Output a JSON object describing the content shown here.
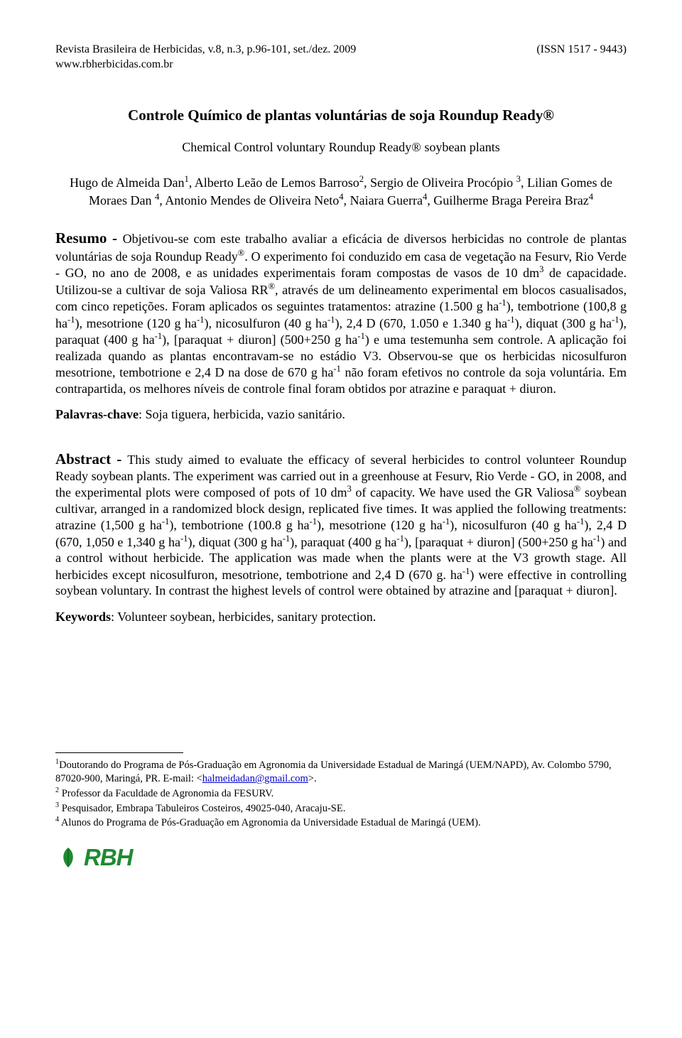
{
  "header": {
    "journal_line": "Revista Brasileira de Herbicidas, v.8, n.3, p.96-101, set./dez. 2009",
    "site_line": "www.rbherbicidas.com.br",
    "issn": "(ISSN 1517 - 9443)"
  },
  "titles": {
    "main": "Controle Químico de plantas voluntárias de soja Roundup Ready®",
    "sub": "Chemical Control voluntary Roundup Ready® soybean plants"
  },
  "authors_html": "Hugo de Almeida Dan<sup>1</sup>, Alberto Leão de Lemos Barroso<sup>2</sup>, Sergio de Oliveira Procópio <sup>3</sup>, Lilian Gomes de Moraes Dan <sup>4</sup>, Antonio Mendes de Oliveira Neto<sup>4</sup>, Naiara Guerra<sup>4</sup>, Guilherme Braga Pereira Braz<sup>4</sup>",
  "resumo": {
    "label": "Resumo - ",
    "text_html": "Objetivou-se com este trabalho avaliar a eficácia de diversos herbicidas no controle de plantas voluntárias de soja Roundup Ready<sup>®</sup>. O experimento foi conduzido em casa de vegetação na Fesurv, Rio Verde - GO, no ano de 2008, e as unidades experimentais foram compostas de vasos de 10 dm<sup>3</sup> de capacidade. Utilizou-se a cultivar de soja Valiosa RR<sup>®</sup>, através de um delineamento experimental em blocos casualisados, com cinco repetições. Foram aplicados os seguintes tratamentos: atrazine (1.500 g ha<sup>-1</sup>), tembotrione (100,8 g ha<sup>-1</sup>), mesotrione (120 g ha<sup>-1</sup>), nicosulfuron (40 g ha<sup>-1</sup>), 2,4 D (670, 1.050 e 1.340 g ha<sup>-1</sup>), diquat (300 g ha<sup>-1</sup>), paraquat (400 g ha<sup>-1</sup>), [paraquat + diuron] (500+250 g ha<sup>-1</sup>) e uma testemunha sem controle. A aplicação foi realizada quando as plantas encontravam-se no estádio V3. Observou-se que os herbicidas nicosulfuron mesotrione, tembotrione e 2,4 D na dose de 670 g ha<sup>-1</sup> não foram efetivos no controle da soja voluntária. Em contrapartida, os melhores níveis de controle final foram obtidos por atrazine e paraquat + diuron."
  },
  "palavras": {
    "label": "Palavras-chave",
    "text": ": Soja tiguera, herbicida, vazio sanitário."
  },
  "abstract": {
    "label": "Abstract - ",
    "text_html": "This study aimed to evaluate the efficacy of several herbicides to control volunteer Roundup Ready soybean plants. The experiment was carried out in a greenhouse at Fesurv, Rio Verde - GO, in 2008, and the experimental plots were composed of pots of 10 dm<sup>3</sup> of capacity. We have used the GR Valiosa<sup>®</sup> soybean cultivar, arranged in a randomized block design, replicated five times. It was applied the following treatments: atrazine (1,500 g ha<sup>-1</sup>), tembotrione (100.8 g ha<sup>-1</sup>), mesotrione (120 g ha<sup>-1</sup>), nicosulfuron (40 g ha<sup>-1</sup>), 2,4 D (670, 1,050 e 1,340 g ha<sup>-1</sup>), diquat (300 g ha<sup>-1</sup>), paraquat (400 g ha<sup>-1</sup>), [paraquat + diuron] (500+250 g ha<sup>-1</sup>) and a control without herbicide. The application was made when the plants were at the V3 growth stage. All herbicides except nicosulfuron, mesotrione, tembotrione and 2,4 D (670 g. ha<sup>-1</sup>) were effective in controlling soybean voluntary. In contrast the highest levels of control were obtained by atrazine and [paraquat + diuron]."
  },
  "keywords": {
    "label": "Keywords",
    "text": ": Volunteer soybean, herbicides, sanitary protection."
  },
  "footnotes": {
    "f1_html": "<sup>1</sup>Doutorando do Programa de Pós-Graduação em Agronomia da Universidade Estadual de Maringá (UEM/NAPD), Av. Colombo 5790, 87020-900, Maringá, PR. E-mail: &lt;<a href=\"#\">halmeidadan@gmail.com</a>&gt;.",
    "f2_html": "<sup>2</sup> Professor da Faculdade de Agronomia da FESURV.",
    "f3_html": "<sup>3</sup> Pesquisador, Embrapa Tabuleiros Costeiros, 49025-040, Aracaju-SE.",
    "f4_html": "<sup>4</sup> Alunos do Programa de Pós-Graduação em Agronomia da Universidade Estadual de Maringá (UEM)."
  },
  "logo": {
    "text": "RBH",
    "accent_color": "#1f8a32"
  }
}
